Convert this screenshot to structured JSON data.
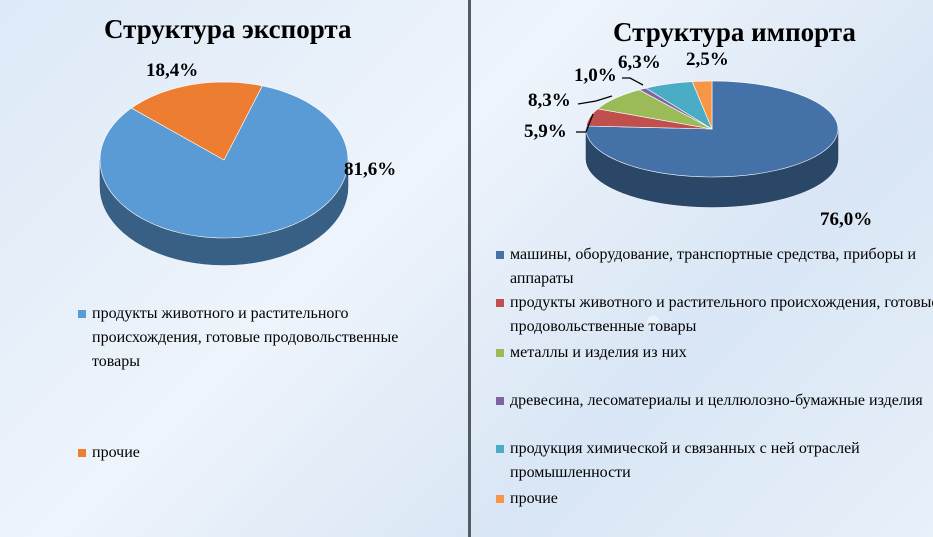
{
  "chart_data": [
    {
      "type": "pie",
      "title": "Структура экспорта",
      "categories": [
        "продукты животного и растительного происхождения, готовые продовольственные товары",
        "прочие"
      ],
      "values": [
        81.6,
        18.4
      ],
      "labels": [
        "81,6%",
        "18,4%"
      ],
      "colors": [
        "#5b9bd5",
        "#ed7d31"
      ],
      "legend_position": "bottom",
      "style": "3d"
    },
    {
      "type": "pie",
      "title": "Структура импорта",
      "categories": [
        "машины, оборудование, транспортные средства, приборы и аппараты",
        "продукты животного и растительного происхождения, готовые продовольственные товары",
        "металлы и изделия из них",
        "древесина, лесоматериалы и целлюлозно-бумажные изделия",
        "продукция химической и связанных с ней отраслей промышленности",
        "прочие"
      ],
      "values": [
        76.0,
        5.9,
        8.3,
        1.0,
        6.3,
        2.5
      ],
      "labels": [
        "76,0%",
        "5,9%",
        "8,3%",
        "1,0%",
        "6,3%",
        "2,5%"
      ],
      "colors": [
        "#4472a8",
        "#c0504d",
        "#9bbb59",
        "#8064a2",
        "#4bacc6",
        "#f79646"
      ],
      "legend_position": "bottom",
      "style": "3d"
    }
  ]
}
